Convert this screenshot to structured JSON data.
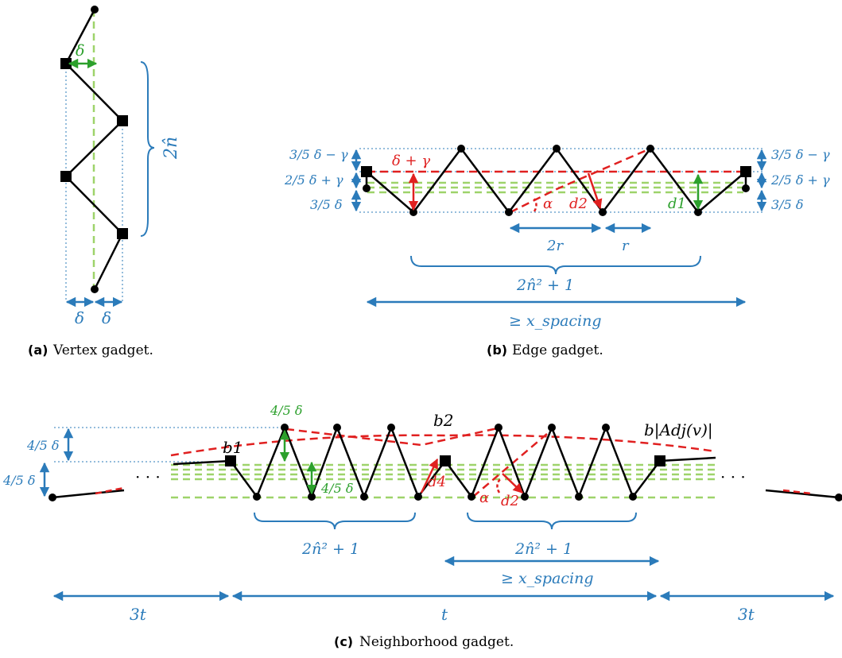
{
  "colors": {
    "blue": "#2b7bba",
    "green": "#2ca02c",
    "light_green": "#9ed36a",
    "red": "#e02020",
    "black": "#000000"
  },
  "captions": {
    "a_tag": "(a)",
    "a_text": "Vertex gadget.",
    "b_tag": "(b)",
    "b_text": "Edge gadget.",
    "c_tag": "(c)",
    "c_text": "Neighborhood gadget."
  },
  "vertex_gadget": {
    "delta": "δ",
    "delta_left": "δ",
    "delta_right": "δ",
    "height": "2n̂"
  },
  "edge_gadget": {
    "top_left": "3/5 δ − γ",
    "mid_left": "2/5 δ + γ",
    "bot_left": "3/5 δ",
    "top_right": "3/5 δ − γ",
    "mid_right": "2/5 δ + γ",
    "bot_right": "3/5 δ",
    "red_label": "δ + γ",
    "alpha": "α",
    "d2": "d2",
    "d1": "d1",
    "two_r": "2r",
    "r": "r",
    "brace": "2n̂² + 1",
    "spacing": "≥ x_spacing"
  },
  "neighborhood_gadget": {
    "left_top": "4/5 δ",
    "left_bot": "4/5 δ",
    "green_top": "4/5 δ",
    "green_mid": "4/5 δ",
    "b1": "b1",
    "b2": "b2",
    "b_adj": "b|Adj(v)|",
    "d4": "d4",
    "d2": "d2",
    "alpha": "α",
    "brace_left": "2n̂² + 1",
    "brace_right": "2n̂² + 1",
    "spacing": "≥ x_spacing",
    "left_3t": "3t",
    "middle_t": "t",
    "right_3t": "3t",
    "dots_left": "· · ·",
    "dots_right": "· · ·"
  }
}
